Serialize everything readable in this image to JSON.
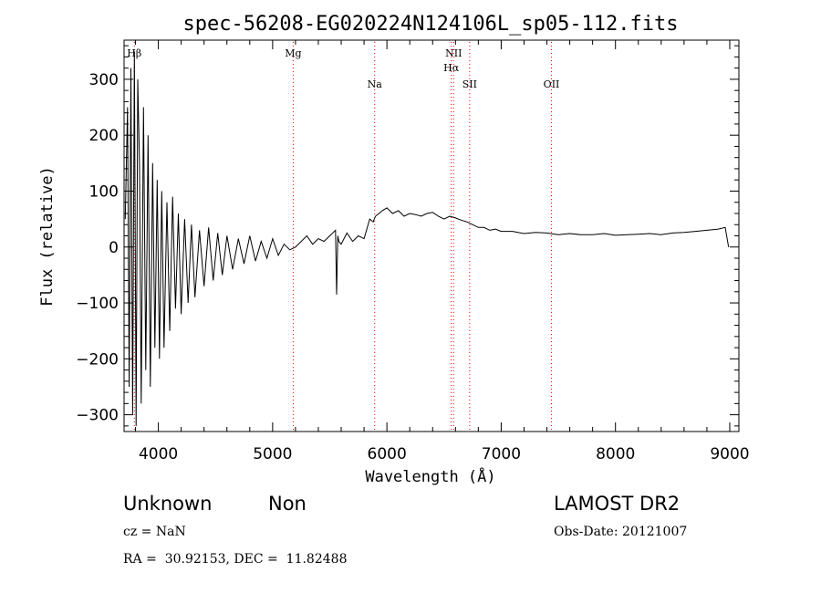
{
  "chart_data": {
    "type": "line",
    "title": "spec-56208-EG020224N124106L_sp05-112.fits",
    "xlabel": "Wavelength (Å)",
    "ylabel": "Flux (relative)",
    "xlim": [
      3700,
      9080
    ],
    "ylim": [
      -330,
      370
    ],
    "xticks": [
      4000,
      5000,
      6000,
      7000,
      8000,
      9000
    ],
    "yticks": [
      -300,
      -200,
      -100,
      0,
      100,
      200,
      300
    ],
    "grid": false,
    "line_color": "#000000",
    "marker_color": "#ff0000",
    "lines": [
      {
        "label": "Hβ",
        "wavelength": 3790,
        "row": "high"
      },
      {
        "label": "Mg",
        "wavelength": 5180,
        "row": "high"
      },
      {
        "label": "Na",
        "wavelength": 5893,
        "row": "low"
      },
      {
        "label": "NII",
        "wavelength": 6584,
        "row": "high"
      },
      {
        "label": "Hα",
        "wavelength": 6563,
        "row": "mid"
      },
      {
        "label": "SII",
        "wavelength": 6724,
        "row": "low"
      },
      {
        "label": "OII",
        "wavelength": 7440,
        "row": "low"
      }
    ],
    "series": [
      {
        "x": [
          3710,
          3730,
          3745,
          3760,
          3775,
          3790,
          3805,
          3820,
          3835,
          3850,
          3870,
          3890,
          3910,
          3930,
          3950,
          3970,
          3990,
          4010,
          4030,
          4050,
          4075,
          4100,
          4125,
          4150,
          4175,
          4200,
          4230,
          4260,
          4290,
          4320,
          4360,
          4400,
          4440,
          4480,
          4520,
          4560,
          4600,
          4650,
          4700,
          4750,
          4800,
          4850,
          4900,
          4950,
          5000,
          5050,
          5100,
          5150,
          5200,
          5250,
          5300,
          5350,
          5400,
          5450,
          5500,
          5550,
          5560,
          5570,
          5580,
          5600,
          5650,
          5700,
          5750,
          5800,
          5850,
          5880,
          5900,
          5930,
          5960,
          6000,
          6050,
          6100,
          6150,
          6200,
          6250,
          6300,
          6350,
          6400,
          6450,
          6500,
          6550,
          6600,
          6650,
          6700,
          6750,
          6800,
          6850,
          6900,
          6950,
          7000,
          7100,
          7200,
          7300,
          7400,
          7500,
          7600,
          7700,
          7800,
          7900,
          8000,
          8100,
          8200,
          8300,
          8400,
          8500,
          8600,
          8700,
          8800,
          8900,
          8960,
          8990
        ],
        "y": [
          50,
          250,
          -250,
          320,
          -300,
          350,
          -320,
          300,
          150,
          -280,
          250,
          -220,
          200,
          -250,
          150,
          -180,
          120,
          -200,
          100,
          -180,
          80,
          -150,
          90,
          -110,
          60,
          -120,
          50,
          -100,
          40,
          -90,
          30,
          -70,
          35,
          -60,
          25,
          -50,
          20,
          -40,
          15,
          -30,
          20,
          -25,
          10,
          -20,
          15,
          -15,
          5,
          -5,
          0,
          10,
          20,
          5,
          15,
          10,
          20,
          30,
          -85,
          20,
          10,
          5,
          25,
          10,
          20,
          15,
          50,
          45,
          55,
          60,
          65,
          70,
          60,
          65,
          55,
          60,
          58,
          55,
          60,
          62,
          55,
          50,
          55,
          52,
          48,
          45,
          40,
          35,
          35,
          30,
          32,
          28,
          28,
          24,
          26,
          25,
          22,
          24,
          22,
          22,
          24,
          21,
          22,
          23,
          24,
          22,
          25,
          26,
          28,
          30,
          32,
          35,
          0
        ]
      }
    ]
  },
  "footer": {
    "object_class": "Unknown",
    "subclass": "Non",
    "survey": "LAMOST DR2",
    "cz": "cz = NaN",
    "obs_date": "Obs-Date: 20121007",
    "coords": "RA =  30.92153, DEC =  11.82488"
  }
}
